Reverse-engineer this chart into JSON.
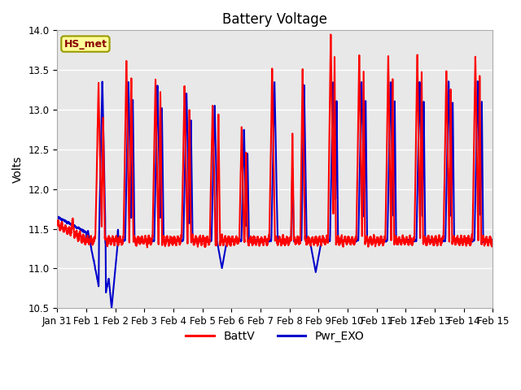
{
  "title": "Battery Voltage",
  "ylabel": "Volts",
  "xlabel": "",
  "ylim": [
    10.5,
    14.0
  ],
  "yticks": [
    10.5,
    11.0,
    11.5,
    12.0,
    12.5,
    13.0,
    13.5,
    14.0
  ],
  "xtick_labels": [
    "Jan 31",
    "Feb 1",
    "Feb 2",
    "Feb 3",
    "Feb 4",
    "Feb 5",
    "Feb 6",
    "Feb 7",
    "Feb 8",
    "Feb 9",
    "Feb 10",
    "Feb 11",
    "Feb 12",
    "Feb 13",
    "Feb 14",
    "Feb 15"
  ],
  "background_color": "#ffffff",
  "plot_bg_color": "#e8e8e8",
  "line_color_battv": "#ff0000",
  "line_color_pwr": "#0000cc",
  "line_width": 1.5,
  "legend_label_battv": "BattV",
  "legend_label_pwr": "Pwr_EXO",
  "station_label": "HS_met",
  "station_box_facecolor": "#ffff99",
  "station_box_edgecolor": "#999900",
  "title_fontsize": 12,
  "axis_fontsize": 10,
  "tick_fontsize": 8.5
}
